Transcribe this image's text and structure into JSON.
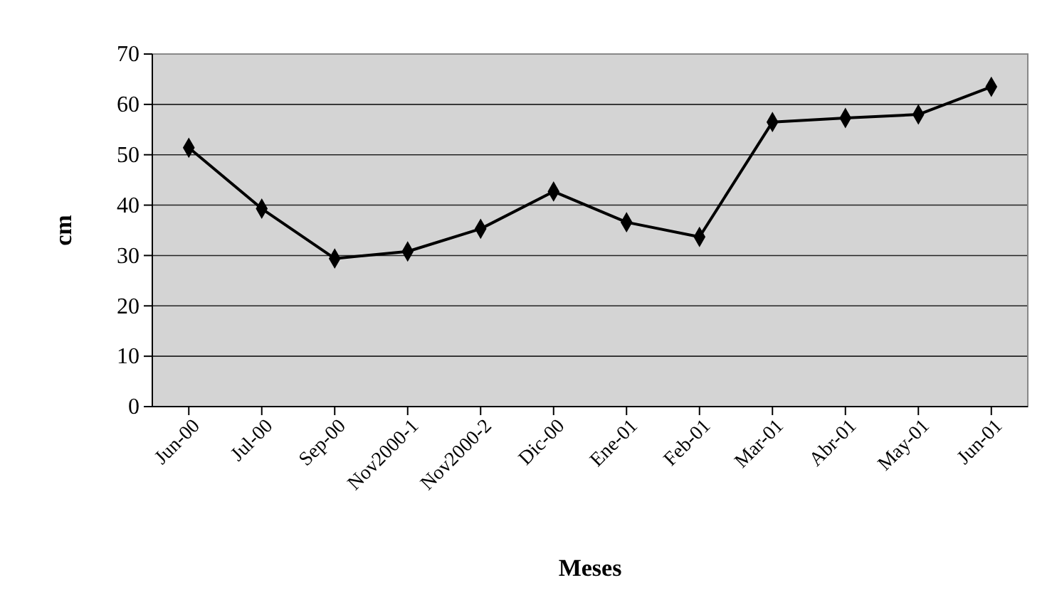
{
  "chart_data": {
    "type": "line",
    "xlabel": "Meses",
    "ylabel": "cm",
    "categories": [
      "Jun-00",
      "Jul-00",
      "Sep-00",
      "Nov2000-1",
      "Nov2000-2",
      "Dic-00",
      "Ene-01",
      "Feb-01",
      "Mar-01",
      "Abr-01",
      "May-01",
      "Jun-01"
    ],
    "series": [
      {
        "color": "#000000",
        "values": [
          51.4,
          39.3,
          29.4,
          30.8,
          35.3,
          42.7,
          36.6,
          33.7,
          56.5,
          57.3,
          58,
          63.5
        ]
      }
    ],
    "ylim": [
      0,
      70
    ],
    "yticks": [
      0,
      10,
      20,
      30,
      40,
      50,
      60,
      70
    ],
    "grid": "y",
    "marker": "diamond",
    "line_style": "solid"
  }
}
